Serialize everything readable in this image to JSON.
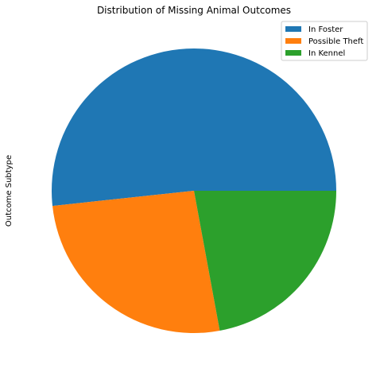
{
  "chart_data": {
    "type": "pie",
    "title": "Distribution of Missing Animal Outcomes",
    "ylabel": "Outcome Subtype",
    "categories": [
      "In Foster",
      "Possible Theft",
      "In Kennel"
    ],
    "values": [
      51.7,
      26.2,
      22.1
    ],
    "colors": [
      "#1f77b4",
      "#ff7f0e",
      "#2ca02c"
    ],
    "start_angle_deg": 0,
    "direction": "counterclockwise",
    "legend_position": "top-right"
  }
}
